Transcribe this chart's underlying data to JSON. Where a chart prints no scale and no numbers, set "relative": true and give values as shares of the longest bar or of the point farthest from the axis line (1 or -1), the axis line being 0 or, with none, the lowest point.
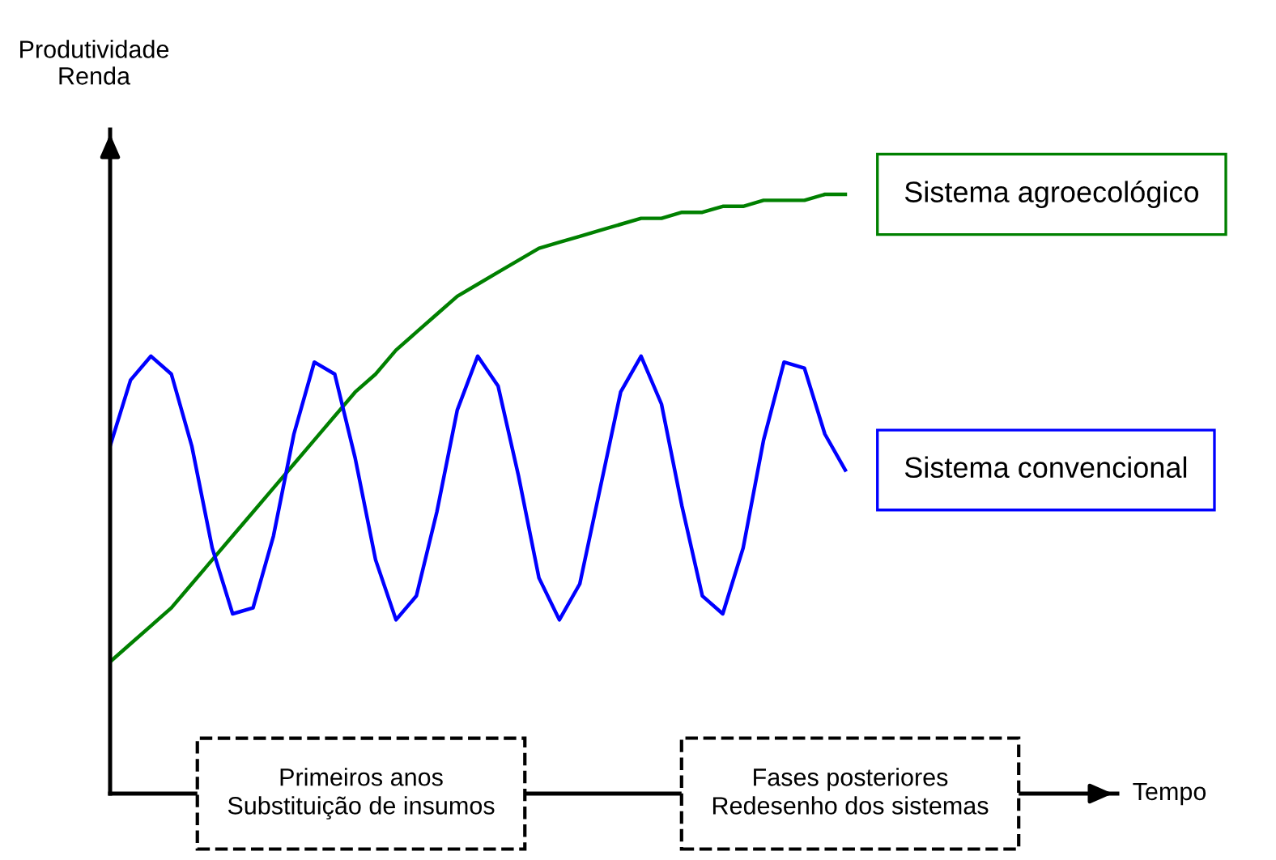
{
  "chart_data": {
    "type": "line",
    "relative": true,
    "legend": false,
    "marker": "none",
    "line_style": "solid",
    "ylabel": "Produtividade\nRenda",
    "categories": [
      null,
      null,
      null,
      null,
      null,
      null,
      null,
      null,
      null,
      null,
      null,
      null,
      null,
      null,
      null,
      null,
      null,
      null,
      null,
      null,
      null,
      null,
      null,
      null,
      null,
      null,
      null,
      null,
      null,
      null,
      null,
      null,
      null,
      null,
      null,
      null,
      null
    ],
    "series": [
      {
        "name": "Sistema agroecológico",
        "color": "#008000",
        "values": [
          0.22,
          0.25,
          0.28,
          0.31,
          0.35,
          0.39,
          0.43,
          0.47,
          0.51,
          0.55,
          0.59,
          0.63,
          0.67,
          0.7,
          0.74,
          0.77,
          0.8,
          0.83,
          0.85,
          0.87,
          0.89,
          0.91,
          0.92,
          0.93,
          0.94,
          0.95,
          0.96,
          0.96,
          0.97,
          0.97,
          0.98,
          0.98,
          0.99,
          0.99,
          0.99,
          1.0,
          1.0
        ]
      },
      {
        "name": "Sistema convencional",
        "color": "#0000ff",
        "values": [
          0.58,
          0.69,
          0.73,
          0.7,
          0.58,
          0.41,
          0.3,
          0.31,
          0.43,
          0.6,
          0.72,
          0.7,
          0.56,
          0.39,
          0.29,
          0.33,
          0.47,
          0.64,
          0.73,
          0.68,
          0.53,
          0.36,
          0.29,
          0.35,
          0.51,
          0.67,
          0.73,
          0.65,
          0.48,
          0.33,
          0.3,
          0.41,
          0.59,
          0.72,
          0.71,
          0.6,
          0.54
        ]
      }
    ],
    "annotations": [
      "Primeiros anos\nSubstituição de insumos",
      "Fases posteriores\nRedesenho dos sistemas",
      "Tempo"
    ]
  }
}
